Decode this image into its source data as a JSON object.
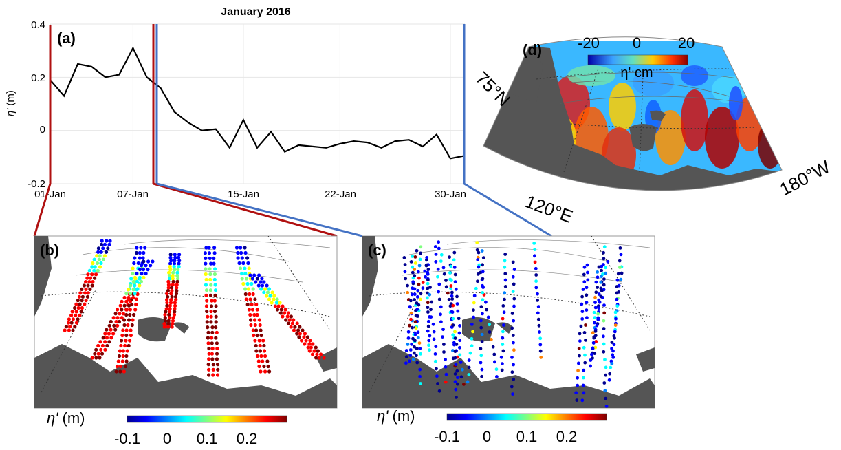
{
  "panel_a": {
    "panel_label": "(a)",
    "title": "January 2016",
    "ylabel_symbol": "η'",
    "ylabel_unit": " (m)",
    "yticks": [
      "0.4",
      "0.2",
      "0",
      "-0.2"
    ],
    "xticks": [
      "01-Jan",
      "07-Jan",
      "15-Jan",
      "22-Jan",
      "30-Jan"
    ]
  },
  "panel_b": {
    "panel_label": "(b)",
    "colorbar_label_symbol": "η'",
    "colorbar_label_unit": " (m)",
    "colorbar_ticks": [
      "-0.1",
      "0",
      "0.1",
      "0.2"
    ]
  },
  "panel_c": {
    "panel_label": "(c)",
    "colorbar_label_symbol": "η'",
    "colorbar_label_unit": " (m)",
    "colorbar_ticks": [
      "-0.1",
      "0",
      "0.1",
      "0.2"
    ]
  },
  "panel_d": {
    "panel_label": "(d)",
    "colorbar_ticks": [
      "-20",
      "0",
      "20"
    ],
    "colorbar_label": "η' cm",
    "lat_label": "75°N",
    "lon_label_left": "120°E",
    "lon_label_right": "180°W"
  },
  "colors": {
    "land": "#555555",
    "line": "#000000",
    "bracket_red": "#b01010",
    "bracket_blue": "#4472c4",
    "colormap": [
      "#00008f",
      "#0000ff",
      "#0080ff",
      "#00ffff",
      "#80ff80",
      "#ffff00",
      "#ff8000",
      "#ff0000",
      "#800000"
    ]
  },
  "chart_data": [
    {
      "type": "line",
      "title": "January 2016",
      "ylabel": "η' (m)",
      "xlabel": "",
      "ylim": [
        -0.2,
        0.4
      ],
      "xlim": [
        1,
        31
      ],
      "grid": true,
      "series": [
        {
          "x": [
            1,
            2,
            3,
            4,
            5,
            6,
            7,
            8,
            9,
            10,
            11,
            12,
            13,
            14,
            15,
            16,
            17,
            18,
            19,
            20,
            21,
            22,
            23,
            24,
            25,
            26,
            27,
            28,
            29,
            30,
            31
          ],
          "y": [
            0.19,
            0.13,
            0.25,
            0.24,
            0.2,
            0.21,
            0.31,
            0.2,
            0.16,
            0.07,
            0.03,
            0.0,
            0.005,
            -0.065,
            0.04,
            -0.065,
            -0.005,
            -0.08,
            -0.055,
            -0.06,
            -0.065,
            -0.05,
            -0.04,
            -0.045,
            -0.065,
            -0.04,
            -0.035,
            -0.06,
            -0.015,
            -0.105,
            -0.095
          ]
        }
      ]
    },
    {
      "type": "scatter",
      "description_period": "01-Jan to 08-Jan",
      "colorbar_range": [
        -0.1,
        0.3
      ]
    },
    {
      "type": "scatter",
      "description_period": "08-Jan to 31-Jan",
      "colorbar_range": [
        -0.1,
        0.3
      ]
    },
    {
      "type": "heatmap",
      "colorbar_range": [
        -25,
        25
      ],
      "colorbar_unit": "cm"
    }
  ]
}
